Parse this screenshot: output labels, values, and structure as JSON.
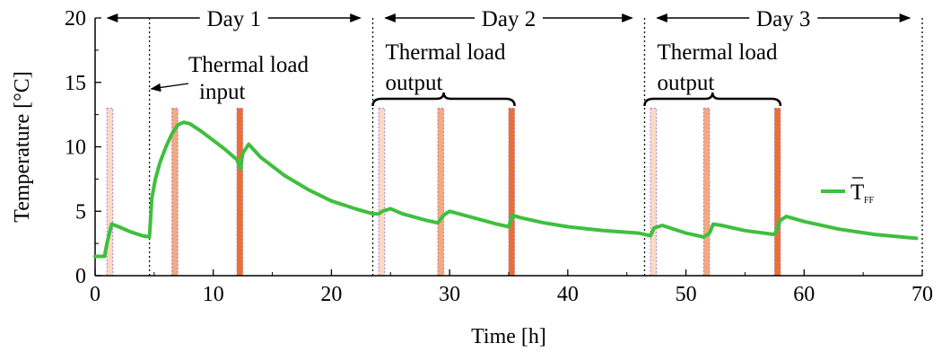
{
  "chart_data": {
    "type": "line",
    "xlabel": "Time [h]",
    "ylabel": "Temperature [°C]",
    "xlim": [
      0,
      70
    ],
    "ylim": [
      0,
      20
    ],
    "x_ticks": [
      0,
      10,
      20,
      30,
      40,
      50,
      60,
      70
    ],
    "y_ticks": [
      0,
      5,
      10,
      15,
      20
    ],
    "grid": false,
    "legend": {
      "placement": "right",
      "entries": [
        {
          "label": "T",
          "subscript": "FF",
          "overbar": true,
          "color": "#3fbf3f"
        }
      ]
    },
    "series": [
      {
        "name": "T̄FF",
        "color": "#3fbf3f",
        "x": [
          0.0,
          0.8,
          1.0,
          1.4,
          2.0,
          3.0,
          4.0,
          4.6,
          4.8,
          5.1,
          5.5,
          6.0,
          6.5,
          7.0,
          7.5,
          8.0,
          9.0,
          10.0,
          11.0,
          12.0,
          12.3,
          12.5,
          13.0,
          14.0,
          16.0,
          18.0,
          20.0,
          22.0,
          23.5,
          24.0,
          24.3,
          25.0,
          26.0,
          28.0,
          29.0,
          29.5,
          30.0,
          32.0,
          34.0,
          35.0,
          35.3,
          36.0,
          38.0,
          40.0,
          43.0,
          46.0,
          47.0,
          47.3,
          48.0,
          50.0,
          51.5,
          52.0,
          52.3,
          53.0,
          55.0,
          57.5,
          58.0,
          58.5,
          60.0,
          63.0,
          66.0,
          69.5
        ],
        "y": [
          1.5,
          1.5,
          2.5,
          4.0,
          3.8,
          3.4,
          3.1,
          3.0,
          6.0,
          7.5,
          8.8,
          10.0,
          11.0,
          11.7,
          11.9,
          11.8,
          11.2,
          10.5,
          9.8,
          9.0,
          8.3,
          9.5,
          10.2,
          9.2,
          7.8,
          6.7,
          5.8,
          5.2,
          4.8,
          4.8,
          5.0,
          5.2,
          4.8,
          4.3,
          4.1,
          4.7,
          5.0,
          4.5,
          4.0,
          3.8,
          4.7,
          4.5,
          4.1,
          3.8,
          3.5,
          3.3,
          3.1,
          3.7,
          3.9,
          3.3,
          3.0,
          3.3,
          4.0,
          3.9,
          3.5,
          3.2,
          4.3,
          4.6,
          4.2,
          3.6,
          3.2,
          2.9
        ]
      }
    ],
    "shaded_bars": [
      {
        "x_start": 1.0,
        "x_end": 1.5,
        "top": 13.0,
        "color": "#fcd9c4"
      },
      {
        "x_start": 6.5,
        "x_end": 7.0,
        "top": 13.0,
        "color": "#f4a97e"
      },
      {
        "x_start": 12.0,
        "x_end": 12.5,
        "top": 13.0,
        "color": "#ee6f2d"
      },
      {
        "x_start": 24.0,
        "x_end": 24.5,
        "top": 13.0,
        "color": "#fcd9c4"
      },
      {
        "x_start": 29.0,
        "x_end": 29.5,
        "top": 13.0,
        "color": "#f4a97e"
      },
      {
        "x_start": 35.0,
        "x_end": 35.5,
        "top": 13.0,
        "color": "#ee6f2d"
      },
      {
        "x_start": 47.0,
        "x_end": 47.5,
        "top": 13.0,
        "color": "#fcd9c4"
      },
      {
        "x_start": 51.5,
        "x_end": 52.0,
        "top": 13.0,
        "color": "#f4a97e"
      },
      {
        "x_start": 57.5,
        "x_end": 58.0,
        "top": 13.0,
        "color": "#ee6f2d"
      }
    ],
    "day_markers": [
      {
        "label": "Day 1",
        "x_start": 0,
        "x_end": 23.5
      },
      {
        "label": "Day 2",
        "x_start": 23.5,
        "x_end": 46.5
      },
      {
        "label": "Day 3",
        "x_start": 46.5,
        "x_end": 70
      }
    ],
    "vertical_lines": [
      4.6,
      23.5,
      46.5,
      70
    ],
    "annotations": [
      {
        "id": "input",
        "lines": [
          "Thermal load",
          "input"
        ],
        "arrow_to": [
          4.6,
          14.5
        ]
      },
      {
        "id": "output-day2",
        "lines": [
          "Thermal load",
          "output"
        ],
        "brace": [
          23.5,
          35.5
        ]
      },
      {
        "id": "output-day3",
        "lines": [
          "Thermal load",
          "output"
        ],
        "brace": [
          46.5,
          58.0
        ]
      }
    ]
  }
}
